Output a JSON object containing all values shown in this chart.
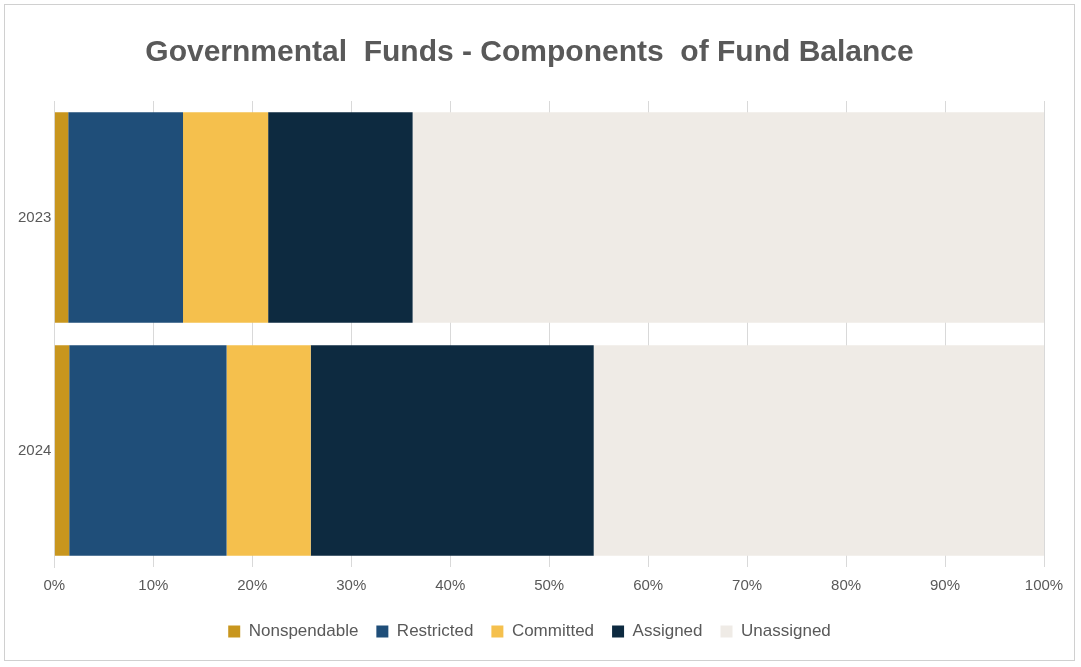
{
  "chart_data": {
    "type": "bar",
    "title": "Governmental  Funds - Components  of Fund Balance",
    "orientation": "horizontal",
    "stacked": true,
    "categories": [
      "2023",
      "2024"
    ],
    "series": [
      {
        "name": "Nonspendable",
        "color": "#c8961e",
        "values": [
          1.4,
          1.5
        ]
      },
      {
        "name": "Restricted",
        "color": "#1f4e79",
        "values": [
          11.6,
          15.9
        ]
      },
      {
        "name": "Committed",
        "color": "#f5c04d",
        "values": [
          8.6,
          8.5
        ]
      },
      {
        "name": "Assigned",
        "color": "#0d2a40",
        "values": [
          14.6,
          28.6
        ]
      },
      {
        "name": "Unassigned",
        "color": "#efebe6",
        "values": [
          63.8,
          45.5
        ]
      }
    ],
    "xlim": [
      0,
      100
    ],
    "xticks": [
      {
        "value": 0,
        "label": "0%"
      },
      {
        "value": 10,
        "label": "10%"
      },
      {
        "value": 20,
        "label": "20%"
      },
      {
        "value": 30,
        "label": "30%"
      },
      {
        "value": 40,
        "label": "40%"
      },
      {
        "value": 50,
        "label": "50%"
      },
      {
        "value": 60,
        "label": "60%"
      },
      {
        "value": 70,
        "label": "70%"
      },
      {
        "value": 80,
        "label": "80%"
      },
      {
        "value": 90,
        "label": "90%"
      },
      {
        "value": 100,
        "label": "100%"
      }
    ],
    "grid": "x",
    "legend": "bottom"
  }
}
